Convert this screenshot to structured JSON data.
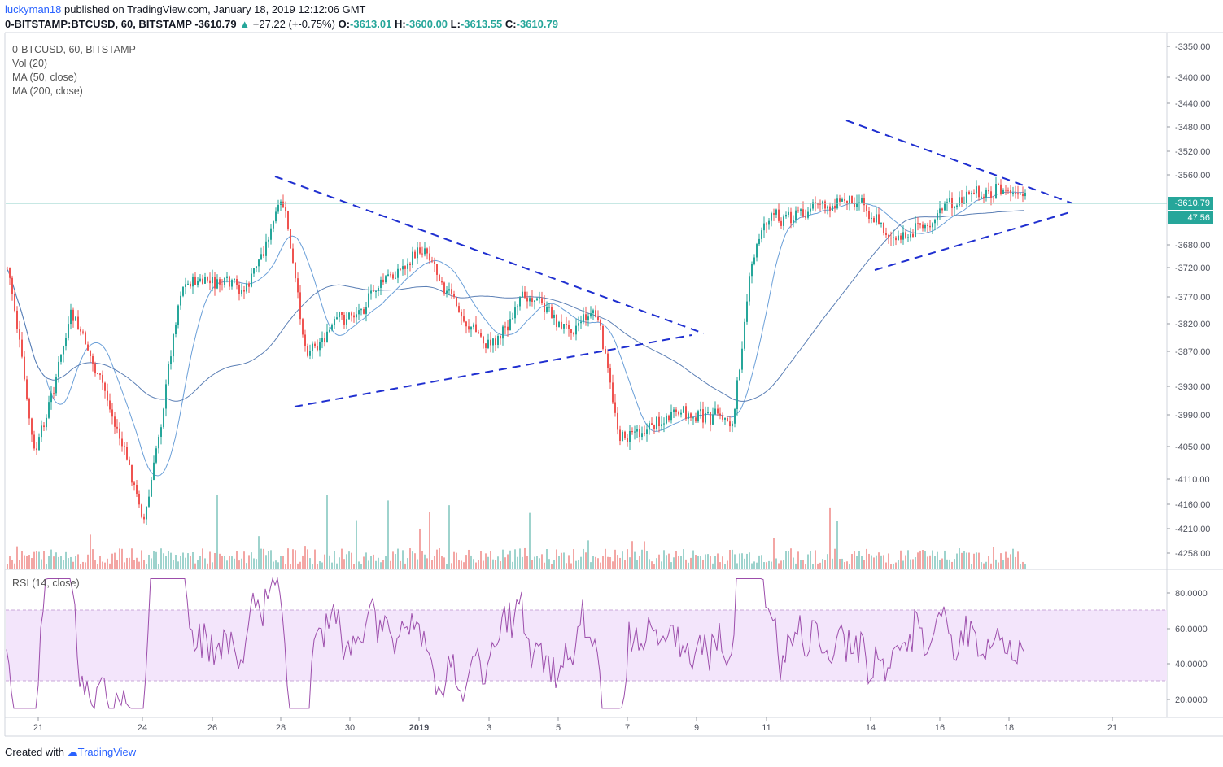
{
  "publish": {
    "author": "luckyman18",
    "text": " published on TradingView.com, January 18, 2019 12:12:06 GMT"
  },
  "symbol": {
    "title": "0-BITSTAMP:BTCUSD, 60, BITSTAMP",
    "last": "-3610.79",
    "change": "+27.22 (+-0.75%)",
    "open_label": "O:",
    "open": "-3613.01",
    "high_label": "H:",
    "high": "-3600.00",
    "low_label": "L:",
    "low": "-3613.55",
    "close_label": "C:",
    "close": "-3610.79",
    "up_arrow": "▲"
  },
  "indicators": {
    "main": [
      "0-BTCUSD, 60, BITSTAMP",
      "Vol (20)",
      "MA (50, close)",
      "MA (200, close)"
    ],
    "rsi": "RSI (14, close)"
  },
  "price_tags": {
    "last_price": "-3610.79",
    "countdown": "47:56"
  },
  "footer": {
    "created_with": "Created with",
    "brand": "TradingView"
  },
  "colors": {
    "up": "#26a69a",
    "down": "#ef5350",
    "ma50": "#6a9fd8",
    "ma200": "#5b7fb5",
    "trendline": "#1f2fd0",
    "rsi_line": "#9c4dab",
    "rsi_band": "#f3e5fb",
    "last_price": "#26a69a"
  },
  "chart_data": {
    "type": "candlestick",
    "y_ticks": [
      "-3350.00",
      "-3400.00",
      "-3440.00",
      "-3480.00",
      "-3520.00",
      "-3560.00",
      "-3680.00",
      "-3720.00",
      "-3770.00",
      "-3820.00",
      "-3870.00",
      "-3930.00",
      "-3990.00",
      "-4050.00",
      "-4110.00",
      "-4160.00",
      "-4210.00",
      "-4258.00"
    ],
    "x_ticks": [
      "21",
      "24",
      "26",
      "28",
      "30",
      "2019",
      "3",
      "5",
      "7",
      "9",
      "11",
      "14",
      "16",
      "18",
      "21"
    ],
    "rsi_ticks": [
      "80.0000",
      "60.0000",
      "40.0000",
      "20.0000"
    ],
    "rsi_band": [
      30,
      70
    ],
    "ohlc_anchor_points": [
      {
        "x": "Dec 20",
        "close": -3720
      },
      {
        "x": "Dec 21",
        "close": -4080
      },
      {
        "x": "Dec 22",
        "close": -3800
      },
      {
        "x": "Dec 23",
        "close": -3960
      },
      {
        "x": "Dec 24",
        "close": -4200
      },
      {
        "x": "Dec 25",
        "close": -3740
      },
      {
        "x": "Dec 27",
        "close": -3760
      },
      {
        "x": "Dec 28",
        "close": -3600
      },
      {
        "x": "Dec 29",
        "close": -3870
      },
      {
        "x": "Dec 30",
        "close": -3800
      },
      {
        "x": "Jan 1",
        "close": -3680
      },
      {
        "x": "Jan 2",
        "close": -3800
      },
      {
        "x": "Jan 3",
        "close": -3860
      },
      {
        "x": "Jan 4",
        "close": -3760
      },
      {
        "x": "Jan 5",
        "close": -3830
      },
      {
        "x": "Jan 6",
        "close": -3800
      },
      {
        "x": "Jan 7",
        "close": -4040
      },
      {
        "x": "Jan 8",
        "close": -3990
      },
      {
        "x": "Jan 9",
        "close": -4000
      },
      {
        "x": "Jan 10",
        "close": -3760
      },
      {
        "x": "Jan 11",
        "close": -3640
      },
      {
        "x": "Jan 13",
        "close": -3600
      },
      {
        "x": "Jan 14",
        "close": -3680
      },
      {
        "x": "Jan 15",
        "close": -3620
      },
      {
        "x": "Jan 16",
        "close": -3580
      },
      {
        "x": "Jan 18",
        "close": -3610
      }
    ],
    "last_price": -3610.79,
    "grid": false
  }
}
